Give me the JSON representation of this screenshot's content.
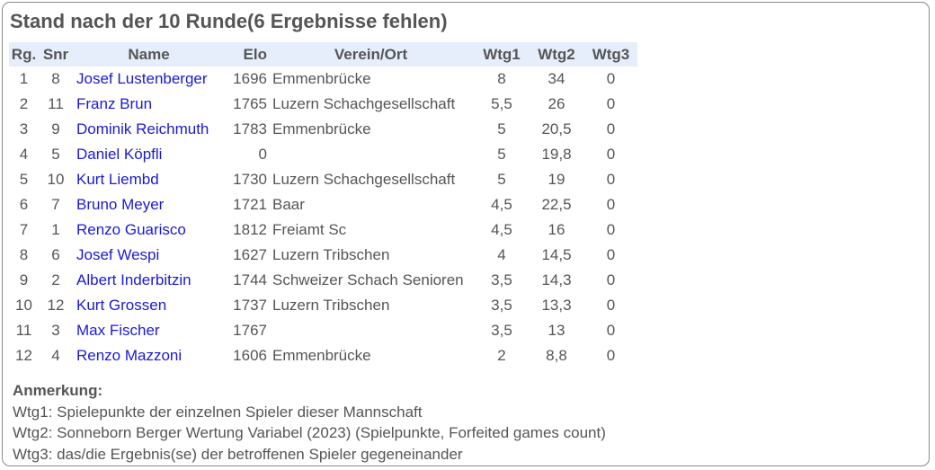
{
  "title": "Stand nach der 10 Runde(6 Ergebnisse fehlen)",
  "columns": {
    "rg": "Rg.",
    "snr": "Snr",
    "name": "Name",
    "elo": "Elo",
    "verein": "Verein/Ort",
    "wtg1": "Wtg1",
    "wtg2": "Wtg2",
    "wtg3": "Wtg3"
  },
  "rows": [
    {
      "rg": "1",
      "snr": "8",
      "name": "Josef Lustenberger",
      "elo": "1696",
      "verein": "Emmenbrücke",
      "wtg1": "8",
      "wtg2": "34",
      "wtg3": "0"
    },
    {
      "rg": "2",
      "snr": "11",
      "name": "Franz Brun",
      "elo": "1765",
      "verein": "Luzern Schachgesellschaft",
      "wtg1": "5,5",
      "wtg2": "26",
      "wtg3": "0"
    },
    {
      "rg": "3",
      "snr": "9",
      "name": "Dominik Reichmuth",
      "elo": "1783",
      "verein": "Emmenbrücke",
      "wtg1": "5",
      "wtg2": "20,5",
      "wtg3": "0"
    },
    {
      "rg": "4",
      "snr": "5",
      "name": "Daniel Köpfli",
      "elo": "0",
      "verein": "",
      "wtg1": "5",
      "wtg2": "19,8",
      "wtg3": "0"
    },
    {
      "rg": "5",
      "snr": "10",
      "name": "Kurt Liembd",
      "elo": "1730",
      "verein": "Luzern Schachgesellschaft",
      "wtg1": "5",
      "wtg2": "19",
      "wtg3": "0"
    },
    {
      "rg": "6",
      "snr": "7",
      "name": "Bruno Meyer",
      "elo": "1721",
      "verein": "Baar",
      "wtg1": "4,5",
      "wtg2": "22,5",
      "wtg3": "0"
    },
    {
      "rg": "7",
      "snr": "1",
      "name": "Renzo Guarisco",
      "elo": "1812",
      "verein": "Freiamt Sc",
      "wtg1": "4,5",
      "wtg2": "16",
      "wtg3": "0"
    },
    {
      "rg": "8",
      "snr": "6",
      "name": "Josef Wespi",
      "elo": "1627",
      "verein": "Luzern Tribschen",
      "wtg1": "4",
      "wtg2": "14,5",
      "wtg3": "0"
    },
    {
      "rg": "9",
      "snr": "2",
      "name": "Albert Inderbitzin",
      "elo": "1744",
      "verein": "Schweizer Schach Senioren",
      "wtg1": "3,5",
      "wtg2": "14,3",
      "wtg3": "0"
    },
    {
      "rg": "10",
      "snr": "12",
      "name": "Kurt Grossen",
      "elo": "1737",
      "verein": "Luzern Tribschen",
      "wtg1": "3,5",
      "wtg2": "13,3",
      "wtg3": "0"
    },
    {
      "rg": "11",
      "snr": "3",
      "name": "Max Fischer",
      "elo": "1767",
      "verein": "",
      "wtg1": "3,5",
      "wtg2": "13",
      "wtg3": "0"
    },
    {
      "rg": "12",
      "snr": "4",
      "name": "Renzo Mazzoni",
      "elo": "1606",
      "verein": "Emmenbrücke",
      "wtg1": "2",
      "wtg2": "8,8",
      "wtg3": "0"
    }
  ],
  "notes": {
    "heading": "Anmerkung:",
    "lines": [
      "Wtg1: Spielepunkte der einzelnen Spieler dieser Mannschaft",
      "Wtg2: Sonneborn Berger Wertung Variabel (2023) (Spielpunkte, Forfeited games count)",
      "Wtg3: das/die Ergebnis(se) der betroffenen Spieler gegeneinander"
    ]
  },
  "colors": {
    "link": "#1a1ad6",
    "header_bg": "#e6eefb",
    "text": "#555555",
    "border": "#8a8a8a"
  }
}
